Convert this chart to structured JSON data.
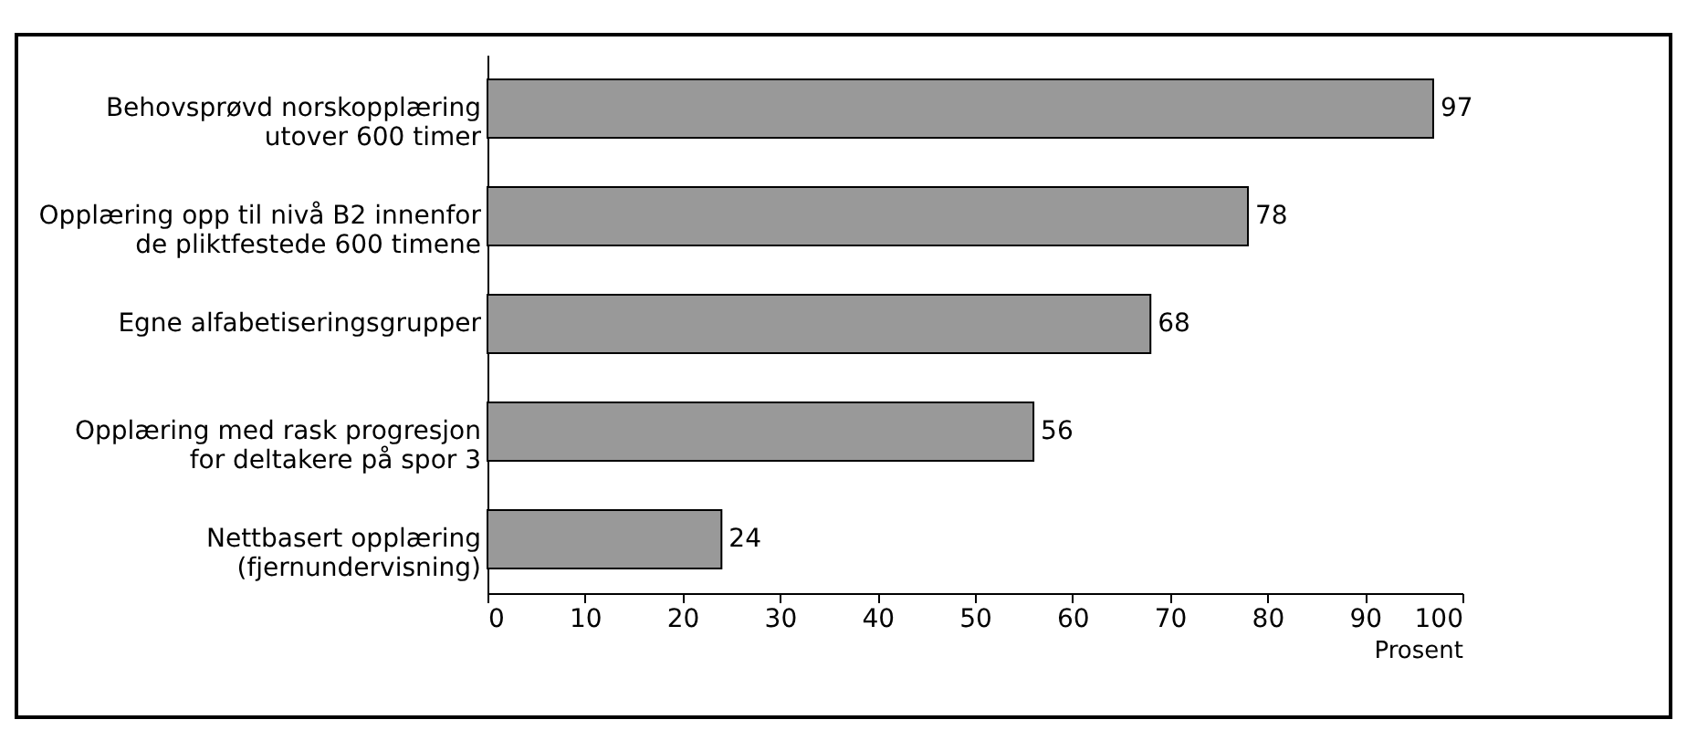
{
  "chart_data": {
    "type": "bar",
    "orientation": "horizontal",
    "categories": [
      "Behovsprøvd norskopplæring\nutover 600 timer",
      "Opplæring opp til nivå B2 innenfor\nde pliktfestede 600 timene",
      "Egne alfabetiseringsgrupper",
      "Opplæring med rask progresjon\nfor deltakere på spor 3",
      "Nettbasert opplæring\n(fjernundervisning)"
    ],
    "values": [
      97,
      78,
      68,
      56,
      24
    ],
    "color": "#999999",
    "xlabel": "Prosent",
    "xlim": [
      0,
      100
    ],
    "xticks": [
      0,
      10,
      20,
      30,
      40,
      50,
      60,
      70,
      80,
      90,
      100
    ],
    "data_labels": true,
    "grid": false
  }
}
